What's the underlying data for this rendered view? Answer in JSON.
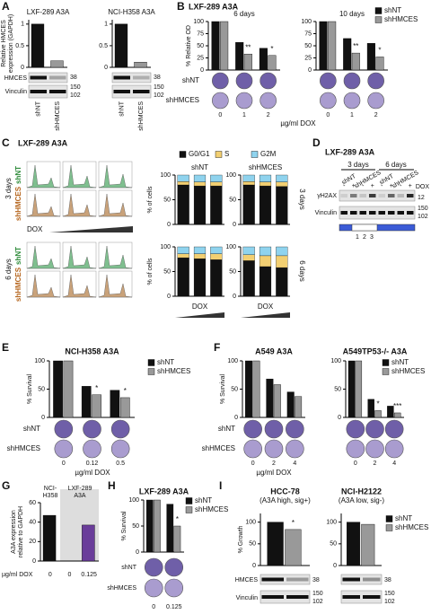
{
  "chart_data": [
    {
      "type": "bar",
      "title": "LXF-289 A3A",
      "ylabel": [
        "Relative HMCES",
        "expression (GAPDH)"
      ],
      "categories": [
        "shNT",
        "shHMCES"
      ],
      "values": [
        1,
        0.15
      ],
      "colors": [
        "#111111",
        "#999999"
      ],
      "ylim": [
        0,
        1.1
      ],
      "yticks": [
        0,
        0.5,
        1
      ]
    },
    {
      "type": "bar",
      "title": "NCI-H358 A3A",
      "categories": [
        "shNT",
        "shHMCES"
      ],
      "values": [
        1,
        0.12
      ],
      "colors": [
        "#111111",
        "#999999"
      ],
      "ylim": [
        0,
        1.1
      ],
      "yticks": [
        0,
        0.5,
        1
      ]
    },
    {
      "type": "bar",
      "title": "6 days",
      "ylabel": "% Relative OD",
      "categories": [
        "0",
        "1",
        "2"
      ],
      "series": [
        {
          "name": "shNT",
          "color": "#111111",
          "values": [
            100,
            57,
            45
          ]
        },
        {
          "name": "shHMCES",
          "color": "#999999",
          "values": [
            100,
            33,
            30
          ]
        }
      ],
      "annotations": [
        null,
        "**",
        "*"
      ],
      "ylim": [
        0,
        100
      ],
      "yticks": [
        0,
        25,
        50,
        75,
        100
      ],
      "legend": "upper right"
    },
    {
      "type": "bar",
      "title": "10 days",
      "categories": [
        "0",
        "1",
        "2"
      ],
      "series": [
        {
          "name": "shNT",
          "color": "#111111",
          "values": [
            100,
            65,
            55
          ]
        },
        {
          "name": "shHMCES",
          "color": "#999999",
          "values": [
            100,
            35,
            27
          ]
        }
      ],
      "annotations": [
        null,
        "**",
        "*"
      ],
      "ylim": [
        0,
        100
      ],
      "yticks": [
        0,
        25,
        50,
        75,
        100
      ]
    },
    {
      "type": "stacked_bar",
      "title": "shNT",
      "ylabel": "% of cells",
      "categories": [
        null,
        null,
        null
      ],
      "series": [
        {
          "name": "G0/G1",
          "color": "#111111",
          "values": [
            80,
            78,
            78
          ]
        },
        {
          "name": "S",
          "color": "#f2cf72",
          "values": [
            7,
            8,
            8
          ]
        },
        {
          "name": "G2M",
          "color": "#8fd3ee",
          "values": [
            13,
            14,
            14
          ]
        }
      ],
      "ylim": [
        0,
        100
      ],
      "yticks": [
        0,
        50,
        100
      ],
      "legend": "top"
    },
    {
      "type": "stacked_bar",
      "title": "shHMCES",
      "categories": [
        null,
        null,
        null
      ],
      "series": [
        {
          "name": "G0/G1",
          "color": "#111111",
          "values": [
            80,
            78,
            77
          ]
        },
        {
          "name": "S",
          "color": "#f2cf72",
          "values": [
            7,
            8,
            9
          ]
        },
        {
          "name": "G2M",
          "color": "#8fd3ee",
          "values": [
            13,
            14,
            14
          ]
        }
      ],
      "ylim": [
        0,
        100
      ],
      "yticks": [
        0,
        50,
        100
      ]
    },
    {
      "type": "stacked_bar",
      "ylabel": "% of cells",
      "xlabel": "DOX",
      "categories": [
        null,
        null,
        null
      ],
      "series": [
        {
          "name": "G0/G1",
          "color": "#111111",
          "values": [
            78,
            76,
            74
          ]
        },
        {
          "name": "S",
          "color": "#f2cf72",
          "values": [
            8,
            10,
            12
          ]
        },
        {
          "name": "G2M",
          "color": "#8fd3ee",
          "values": [
            14,
            14,
            14
          ]
        }
      ],
      "ylim": [
        0,
        100
      ],
      "yticks": [
        0,
        50,
        100
      ]
    },
    {
      "type": "stacked_bar",
      "xlabel": "DOX",
      "categories": [
        null,
        null,
        null
      ],
      "series": [
        {
          "name": "G0/G1",
          "color": "#111111",
          "values": [
            72,
            60,
            58
          ]
        },
        {
          "name": "S",
          "color": "#f2cf72",
          "values": [
            12,
            22,
            24
          ]
        },
        {
          "name": "G2M",
          "color": "#8fd3ee",
          "values": [
            16,
            18,
            18
          ]
        }
      ],
      "ylim": [
        0,
        100
      ],
      "yticks": [
        0,
        50,
        100
      ]
    },
    {
      "type": "bar",
      "title": "NCI-H358 A3A",
      "ylabel": "% Survival",
      "categories": [
        "0",
        "0.12",
        "0.5"
      ],
      "series": [
        {
          "name": "shNT",
          "color": "#111111",
          "values": [
            100,
            55,
            48
          ]
        },
        {
          "name": "shHMCES",
          "color": "#999999",
          "values": [
            100,
            40,
            35
          ]
        }
      ],
      "annotations": [
        null,
        "*",
        "*"
      ],
      "ylim": [
        0,
        100
      ],
      "yticks": [
        0,
        50,
        100
      ],
      "legend": "right"
    },
    {
      "type": "bar",
      "title": "A549 A3A",
      "ylabel": "% Survival",
      "categories": [
        "0",
        "2",
        "4"
      ],
      "series": [
        {
          "name": "shNT",
          "color": "#111111",
          "values": [
            100,
            68,
            45
          ]
        },
        {
          "name": "shHMCES",
          "color": "#999999",
          "values": [
            100,
            58,
            37
          ]
        }
      ],
      "ylim": [
        0,
        100
      ],
      "yticks": [
        0,
        50,
        100
      ]
    },
    {
      "type": "bar",
      "title": "A549TP53-/- A3A",
      "categories": [
        "0",
        "2",
        "4"
      ],
      "series": [
        {
          "name": "shNT",
          "color": "#111111",
          "values": [
            100,
            32,
            20
          ]
        },
        {
          "name": "shHMCES",
          "color": "#999999",
          "values": [
            100,
            12,
            8
          ]
        }
      ],
      "annotations": [
        null,
        "*",
        "***"
      ],
      "ylim": [
        0,
        100
      ],
      "yticks": [
        0,
        50,
        100
      ],
      "legend": "upper right"
    },
    {
      "type": "bar",
      "ylabel": [
        "A3A expression",
        "relative to GAPDH"
      ],
      "categories": [
        "0",
        "0",
        "0.125"
      ],
      "values": [
        47,
        0,
        37
      ],
      "colors": [
        "#111111",
        "#111111",
        "#6a3d9a"
      ],
      "ylim": [
        0,
        60
      ],
      "yticks": [
        0,
        20,
        40,
        60
      ]
    },
    {
      "type": "bar",
      "title": "LXF-289 A3A",
      "ylabel": "% Survival",
      "categories": [
        "0",
        "0.125"
      ],
      "series": [
        {
          "name": "shNT",
          "color": "#111111",
          "values": [
            100,
            92
          ]
        },
        {
          "name": "shHMCES",
          "color": "#999999",
          "values": [
            100,
            50
          ]
        }
      ],
      "annotations": [
        null,
        "*"
      ],
      "ylim": [
        0,
        100
      ],
      "yticks": [
        0,
        50,
        100
      ],
      "legend": "upper right"
    },
    {
      "type": "bar",
      "title": "HCC-78",
      "subtitle": "(A3A high, sig+)",
      "ylabel": "% Growth",
      "categories": [
        null
      ],
      "series": [
        {
          "name": "shNT",
          "color": "#111111",
          "values": [
            100
          ]
        },
        {
          "name": "shHMCES",
          "color": "#999999",
          "values": [
            83
          ]
        }
      ],
      "annotations": [
        "*"
      ],
      "ylim": [
        0,
        120
      ],
      "yticks": [
        0,
        50,
        100
      ]
    },
    {
      "type": "bar",
      "title": "NCI-H2122",
      "subtitle": "(A3A low, sig-)",
      "categories": [
        null
      ],
      "series": [
        {
          "name": "shNT",
          "color": "#111111",
          "values": [
            100
          ]
        },
        {
          "name": "shHMCES",
          "color": "#999999",
          "values": [
            95
          ]
        }
      ],
      "ylim": [
        0,
        120
      ],
      "yticks": [
        0,
        50,
        100
      ],
      "legend": "right"
    }
  ],
  "texts": {
    "panels": [
      "A",
      "B",
      "C",
      "D",
      "E",
      "F",
      "G",
      "H",
      "I"
    ],
    "a_rows": [
      "HMCES",
      "Vinculin"
    ],
    "a_markers": [
      "38",
      "150",
      "102"
    ],
    "b_title": "LXF-289 A3A",
    "b_rows": [
      "shNT",
      "shHMCES"
    ],
    "b_xlabel": "µg/ml DOX",
    "c_title": "LXF-289 A3A",
    "c_days": [
      "3 days",
      "6 days"
    ],
    "c_rows": [
      "shNT",
      "shHMCES"
    ],
    "c_dox": "DOX",
    "d_title": "LXF-289 A3A",
    "d_times": [
      "3 days",
      "6 days"
    ],
    "d_groups": [
      "shNT",
      "shHMCES"
    ],
    "d_dox": "DOX",
    "d_signs": [
      "-",
      "+"
    ],
    "d_rows": [
      "γH2AX",
      "Vinculin"
    ],
    "d_markers": [
      "12",
      "150",
      "102"
    ],
    "d_lanes": [
      "1",
      "2",
      "3"
    ],
    "e_rows": [
      "shNT",
      "shHMCES"
    ],
    "e_xlabel": "µg/ml DOX",
    "f_rows": [
      "shNT",
      "shHMCES"
    ],
    "f_xlabel": "µg/ml DOX",
    "g_groups": [
      [
        "NCI-",
        "H358"
      ],
      [
        "LXF-289",
        "A3A"
      ]
    ],
    "g_xlabel": "µg/ml DOX",
    "h_rows": [
      "shNT",
      "shHMCES"
    ],
    "i_rows": [
      "HMCES",
      "Vinculin"
    ],
    "i_markers": [
      "38",
      "150",
      "102"
    ]
  }
}
